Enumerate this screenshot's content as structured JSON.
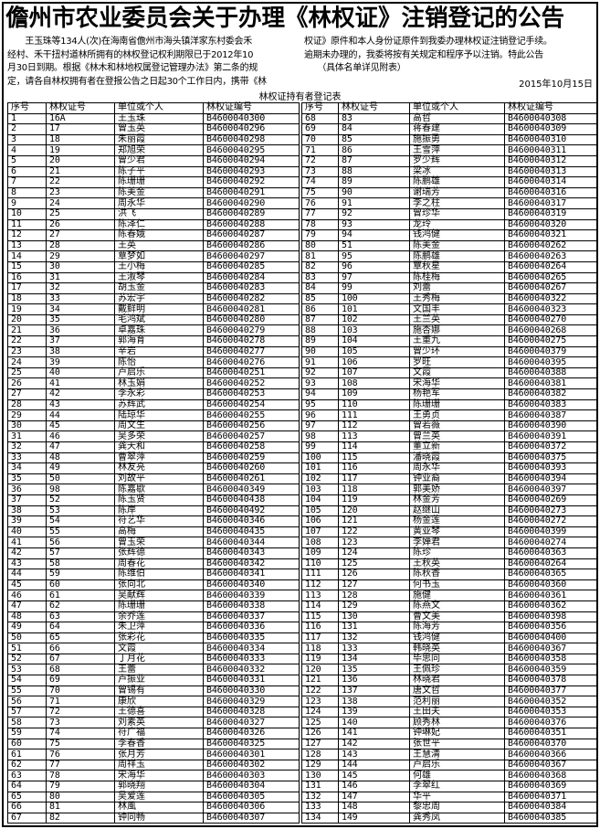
{
  "title": "儋州市农业委员会关于办理《林权证》注销登记的公告",
  "body_left": [
    "　　王玉珠等134人(次)在海南省儋州市海头镇洋家东村委会禾",
    "经村、禾干扭村道林所拥有的林权登记权利期限已于2012年10",
    "月30日到期。根据《林木和林地权属登记管理办法》第二条的规",
    "定，请各自林权拥有者在登报公告之日起30个工作日内，携带《林"
  ],
  "body_right": [
    "权证》原件和本人身份证原件到我委办理林权证注销登记手续。",
    "逾期未办理的，我委将按有关规定和程序予以注销。特此公告",
    "　　（具体名单详见附表）"
  ],
  "date": "2015年10月15日",
  "table_caption": "林权证持有者登记表",
  "columns": [
    "序号",
    "林权证号",
    "单位或个人",
    "林权证编号"
  ],
  "rows_left": [
    [
      "1",
      "16A",
      "王玉珠",
      "B4600040300"
    ],
    [
      "2",
      "17",
      "曾玉英",
      "B4600040296"
    ],
    [
      "3",
      "18",
      "朱丽霞",
      "B4600040298"
    ],
    [
      "4",
      "19",
      "郑旭荣",
      "B4600040295"
    ],
    [
      "5",
      "20",
      "曾少君",
      "B4600040294"
    ],
    [
      "6",
      "21",
      "陈子平",
      "B4600040293"
    ],
    [
      "7",
      "22",
      "陈珊珊",
      "B4600040292"
    ],
    [
      "8",
      "23",
      "陈美金",
      "B4600040291"
    ],
    [
      "9",
      "24",
      "周永华",
      "B4600040290"
    ],
    [
      "10",
      "25",
      "洪飞",
      "B4600040289"
    ],
    [
      "11",
      "26",
      "陈泽仁",
      "B4600040288"
    ],
    [
      "12",
      "27",
      "陈春娥",
      "B4600040287"
    ],
    [
      "13",
      "28",
      "王英",
      "B4600040286"
    ],
    [
      "14",
      "29",
      "覃梦如",
      "B4600040297"
    ],
    [
      "15",
      "30",
      "王小梅",
      "B4600040285"
    ],
    [
      "16",
      "31",
      "王淑琴",
      "B4600040284"
    ],
    [
      "17",
      "32",
      "胡玉金",
      "B4600040283"
    ],
    [
      "18",
      "33",
      "苏宏宇",
      "B4600040282"
    ],
    [
      "19",
      "34",
      "戴鲜明",
      "B4600040281"
    ],
    [
      "20",
      "35",
      "毛鸿斌",
      "B4600040280"
    ],
    [
      "21",
      "36",
      "卓嘉珠",
      "B4600040279"
    ],
    [
      "22",
      "37",
      "郭海育",
      "B4600040278"
    ],
    [
      "23",
      "38",
      "辛岩",
      "B4600040277"
    ],
    [
      "24",
      "39",
      "陈怡",
      "B4600040276"
    ],
    [
      "25",
      "40",
      "卢启乐",
      "B4600040251"
    ],
    [
      "26",
      "41",
      "林玉娟",
      "B4600040252"
    ],
    [
      "27",
      "42",
      "李永彩",
      "B4600040253"
    ],
    [
      "28",
      "43",
      "苏辉武",
      "B4600040254"
    ],
    [
      "29",
      "44",
      "陆琼华",
      "B4600040255"
    ],
    [
      "30",
      "45",
      "周文生",
      "B4600040256"
    ],
    [
      "31",
      "46",
      "吴多荣",
      "B4600040257"
    ],
    [
      "32",
      "47",
      "龚天和",
      "B4600040258"
    ],
    [
      "33",
      "48",
      "曹翠萍",
      "B4600040259"
    ],
    [
      "34",
      "49",
      "林友亮",
      "B4600040260"
    ],
    [
      "35",
      "50",
      "刘故平",
      "B4600040261"
    ],
    [
      "36",
      "98",
      "陈嘉歇",
      "B4600040349"
    ],
    [
      "37",
      "52",
      "陈玉贤",
      "B4600040438"
    ],
    [
      "38",
      "53",
      "陈岸",
      "B4600040492"
    ],
    [
      "39",
      "54",
      "符艺华",
      "B4600040346"
    ],
    [
      "40",
      "55",
      "高梅",
      "B4600040435"
    ],
    [
      "41",
      "56",
      "曾玉荣",
      "B4600040344"
    ],
    [
      "42",
      "57",
      "张辉德",
      "B4600040343"
    ],
    [
      "43",
      "58",
      "周春花",
      "B4600040342"
    ],
    [
      "44",
      "59",
      "陈维伯",
      "B4600040341"
    ],
    [
      "45",
      "60",
      "张向北",
      "B4600040340"
    ],
    [
      "46",
      "61",
      "吴献辉",
      "B4600040339"
    ],
    [
      "47",
      "62",
      "陈珊珊",
      "B4600040338"
    ],
    [
      "48",
      "63",
      "余乔莲",
      "B4600040337"
    ],
    [
      "49",
      "64",
      "朱卫萍",
      "B4600040336"
    ],
    [
      "50",
      "65",
      "张彩花",
      "B4600040335"
    ],
    [
      "51",
      "66",
      "文霞",
      "B4600040334"
    ],
    [
      "52",
      "67",
      "丁月花",
      "B4600040333"
    ],
    [
      "53",
      "68",
      "王蕾",
      "B4600040332"
    ],
    [
      "54",
      "69",
      "卢振业",
      "B4600040331"
    ],
    [
      "55",
      "70",
      "曾锡有",
      "B4600040330"
    ],
    [
      "56",
      "71",
      "康欣",
      "B4600040329"
    ],
    [
      "57",
      "72",
      "王德喜",
      "B4600040328"
    ],
    [
      "58",
      "73",
      "刘素英",
      "B4600040327"
    ],
    [
      "59",
      "74",
      "符广福",
      "B4600040326"
    ],
    [
      "60",
      "75",
      "李春香",
      "B4600040325"
    ],
    [
      "61",
      "76",
      "张月芳",
      "B4600040301"
    ],
    [
      "62",
      "77",
      "周祥玉",
      "B4600040302"
    ],
    [
      "63",
      "78",
      "宋海华",
      "B4600040303"
    ],
    [
      "64",
      "79",
      "郭晓翔",
      "B4600040304"
    ],
    [
      "65",
      "80",
      "吴爱莲",
      "B4600040305"
    ],
    [
      "66",
      "81",
      "林風",
      "B4600040306"
    ],
    [
      "67",
      "82",
      "钟同畅",
      "B4600040307"
    ]
  ],
  "rows_right": [
    [
      "68",
      "83",
      "高哲",
      "B4600040308"
    ],
    [
      "69",
      "84",
      "蒋春建",
      "B4600040309"
    ],
    [
      "70",
      "85",
      "施振勇",
      "B4600040310"
    ],
    [
      "71",
      "86",
      "王雪萍",
      "B4600040311"
    ],
    [
      "72",
      "87",
      "罗少辉",
      "B4600040312"
    ],
    [
      "73",
      "88",
      "梁冰",
      "B4600040313"
    ],
    [
      "74",
      "89",
      "陈鹏雄",
      "B4600040314"
    ],
    [
      "75",
      "90",
      "谢瑞芳",
      "B4600040316"
    ],
    [
      "76",
      "91",
      "李之柱",
      "B4600040317"
    ],
    [
      "77",
      "92",
      "曾珍华",
      "B4600040319"
    ],
    [
      "78",
      "93",
      "龙玲",
      "B4600040320"
    ],
    [
      "79",
      "94",
      "钱鸿健",
      "B4600040321"
    ],
    [
      "80",
      "51",
      "陈美金",
      "B4600040262"
    ],
    [
      "81",
      "95",
      "陈鹏雄",
      "B4600040263"
    ],
    [
      "82",
      "96",
      "覃秋星",
      "B4600040264"
    ],
    [
      "83",
      "97",
      "陈桂梅",
      "B4600040265"
    ],
    [
      "84",
      "99",
      "刘蕾",
      "B4600040267"
    ],
    [
      "85",
      "100",
      "王秀梅",
      "B4600040322"
    ],
    [
      "86",
      "101",
      "文国丰",
      "B4600040323"
    ],
    [
      "87",
      "102",
      "王兰英",
      "B4600040270"
    ],
    [
      "88",
      "103",
      "施杏娜",
      "B4600040268"
    ],
    [
      "89",
      "104",
      "王重九",
      "B4600040275"
    ],
    [
      "90",
      "105",
      "曾少环",
      "B4600040379"
    ],
    [
      "91",
      "106",
      "罗旺",
      "B4600040395"
    ],
    [
      "92",
      "107",
      "文霞",
      "B4600040388"
    ],
    [
      "93",
      "108",
      "宋海华",
      "B4600040381"
    ],
    [
      "94",
      "109",
      "杨艳军",
      "B4600040382"
    ],
    [
      "95",
      "110",
      "陈珊珊",
      "B4600040383"
    ],
    [
      "96",
      "111",
      "王勇贞",
      "B4600040387"
    ],
    [
      "97",
      "112",
      "曾若薇",
      "B4600040390"
    ],
    [
      "98",
      "113",
      "曾兰英",
      "B4600040391"
    ],
    [
      "99",
      "114",
      "董立新",
      "B4600040372"
    ],
    [
      "100",
      "115",
      "潘晓霞",
      "B4600040375"
    ],
    [
      "101",
      "116",
      "周永华",
      "B4600040393"
    ],
    [
      "102",
      "117",
      "钟业裔",
      "B4600040394"
    ],
    [
      "103",
      "118",
      "郭美娇",
      "B4600040397"
    ],
    [
      "104",
      "119",
      "林金芳",
      "B4600040269"
    ],
    [
      "105",
      "120",
      "赵继山",
      "B4600040273"
    ],
    [
      "106",
      "121",
      "杨金莲",
      "B4600040272"
    ],
    [
      "107",
      "122",
      "黄亚琴",
      "B4600040399"
    ],
    [
      "108",
      "123",
      "李婵君",
      "B4600040274"
    ],
    [
      "109",
      "124",
      "陈珍",
      "B4600040363"
    ],
    [
      "110",
      "125",
      "王秋英",
      "B4600040264"
    ],
    [
      "111",
      "126",
      "陈秋香",
      "B4600040365"
    ],
    [
      "112",
      "127",
      "何书玉",
      "B4600040360"
    ],
    [
      "113",
      "128",
      "施健",
      "B4600040361"
    ],
    [
      "114",
      "129",
      "陈燕文",
      "B4600040362"
    ],
    [
      "115",
      "130",
      "曹文美",
      "B4600040398"
    ],
    [
      "116",
      "131",
      "陈海芳",
      "B4600040356"
    ],
    [
      "117",
      "132",
      "钱鸿健",
      "B4600040400"
    ],
    [
      "118",
      "133",
      "韩晓英",
      "B4600040367"
    ],
    [
      "119",
      "134",
      "毕思同",
      "B4600040358"
    ],
    [
      "120",
      "135",
      "王佩珍",
      "B4600040359"
    ],
    [
      "121",
      "136",
      "林晓君",
      "B4600040378"
    ],
    [
      "122",
      "137",
      "唐文哲",
      "B4600040377"
    ],
    [
      "123",
      "138",
      "范利丽",
      "B4600040352"
    ],
    [
      "124",
      "139",
      "王田夫",
      "B4600040353"
    ],
    [
      "125",
      "140",
      "顾秀林",
      "B4600040376"
    ],
    [
      "126",
      "141",
      "钟琳妃",
      "B4600040351"
    ],
    [
      "127",
      "142",
      "张世平",
      "B4600040370"
    ],
    [
      "128",
      "143",
      "王慧清",
      "B4600040366"
    ],
    [
      "129",
      "144",
      "卢启乐",
      "B4600040367"
    ],
    [
      "130",
      "145",
      "何雄",
      "B4600040368"
    ],
    [
      "131",
      "146",
      "李翠红",
      "B4600040369"
    ],
    [
      "132",
      "147",
      "华平",
      "B4600040371"
    ],
    [
      "133",
      "148",
      "黎忠周",
      "B4600040384"
    ],
    [
      "134",
      "149",
      "龚秀凤",
      "B4600040385"
    ]
  ]
}
